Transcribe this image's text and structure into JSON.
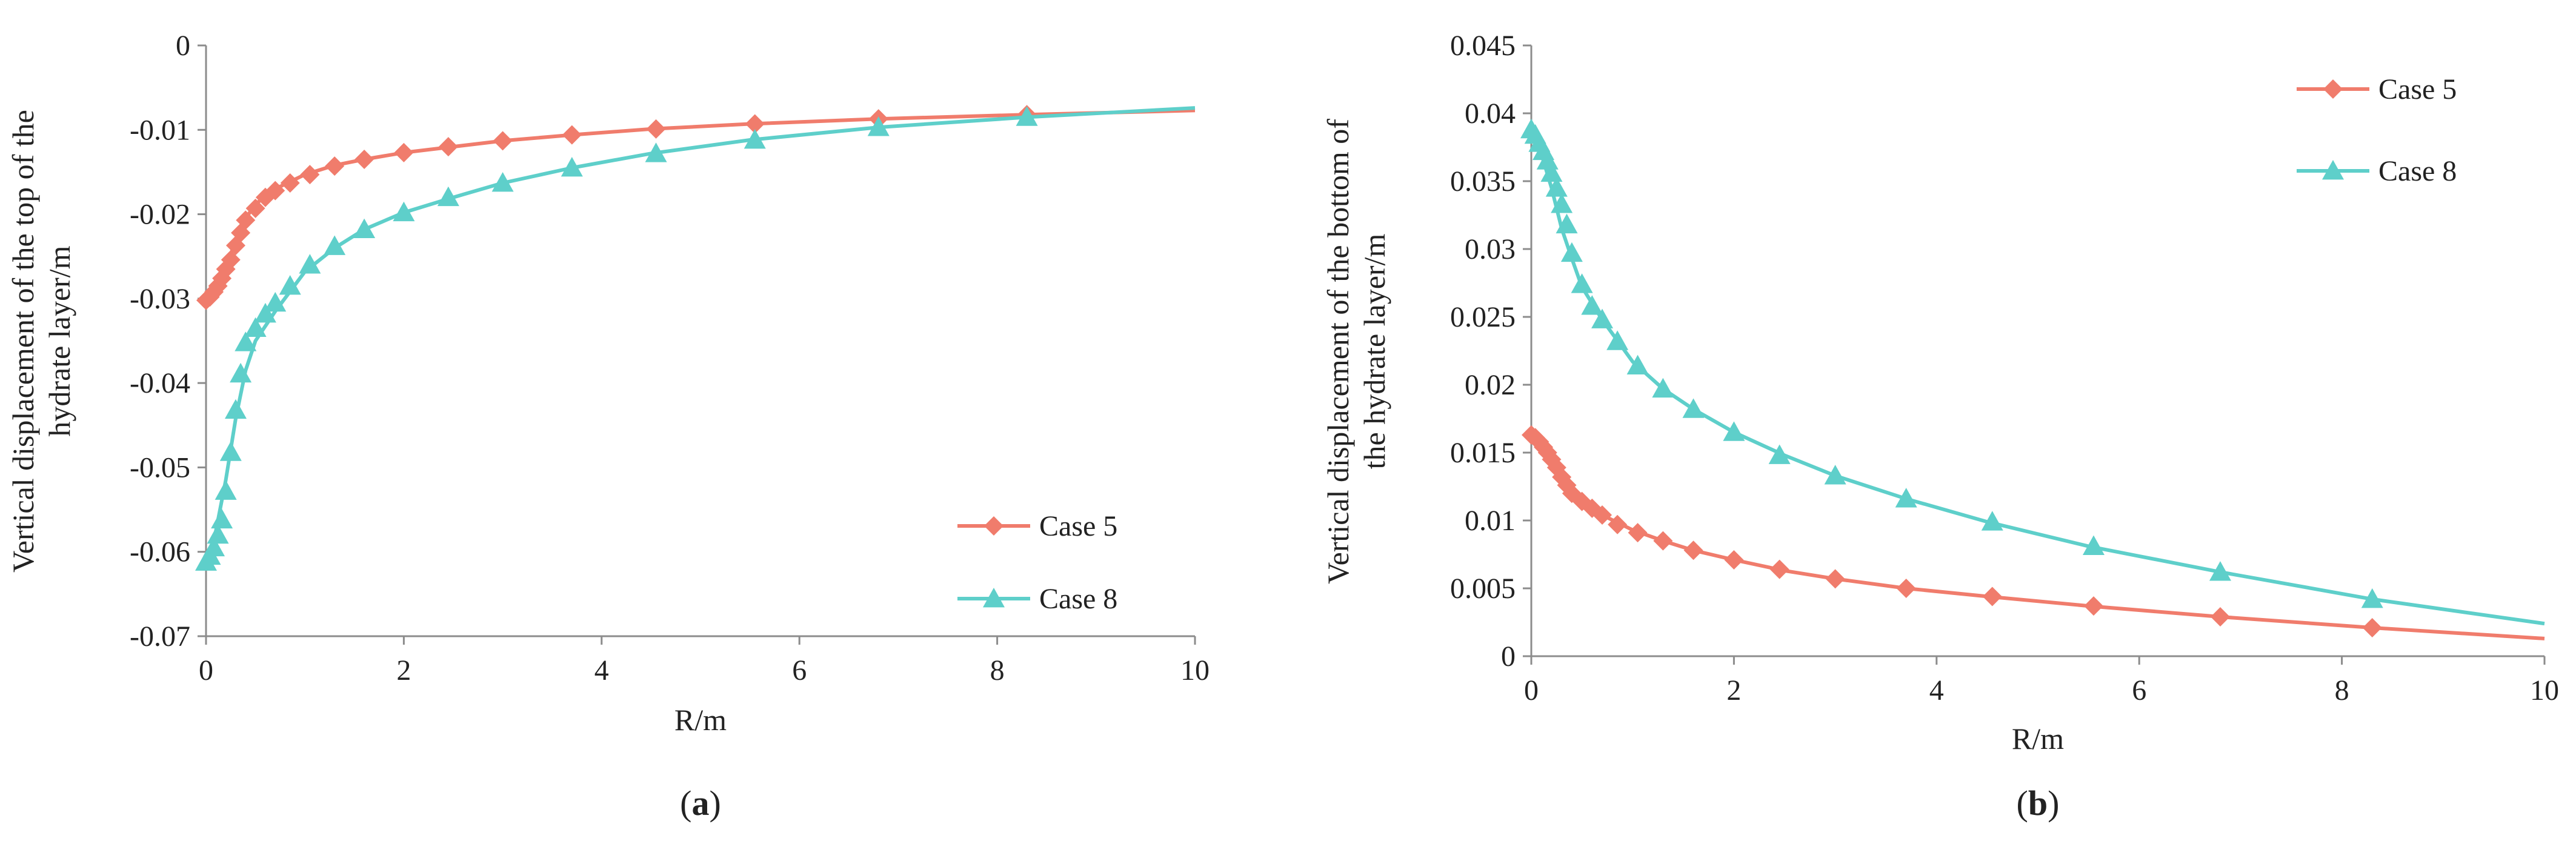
{
  "chart_data": [
    {
      "panel_label": "a",
      "type": "line",
      "xlabel": "R/m",
      "ylabel_lines": [
        "Vertical displacement of the top of the",
        "hydrate layer/m"
      ],
      "xlim": [
        0,
        10
      ],
      "ylim": [
        -0.07,
        0
      ],
      "xticks": [
        0,
        2,
        4,
        6,
        8,
        10
      ],
      "yticks": [
        0,
        -0.01,
        -0.02,
        -0.03,
        -0.04,
        -0.05,
        -0.06,
        -0.07
      ],
      "xtick_labels": [
        "0",
        "2",
        "4",
        "6",
        "8",
        "10"
      ],
      "ytick_labels": [
        "0",
        "-0.01",
        "-0.02",
        "-0.03",
        "-0.04",
        "-0.05",
        "-0.06",
        "-0.07"
      ],
      "legend_position": "bottom-right",
      "series": [
        {
          "name": "Case 5",
          "color": "#f07c6c",
          "marker": "diamond",
          "curve_x": [
            0,
            0.05,
            0.1,
            0.2,
            0.3,
            0.4,
            0.5,
            0.7,
            1.0,
            1.3,
            1.6,
            2.0,
            2.5,
            3.0,
            3.7,
            4.5,
            5.5,
            6.8,
            8.3,
            10
          ],
          "curve_y": [
            -0.0302,
            -0.0295,
            -0.0285,
            -0.0262,
            -0.0232,
            -0.0205,
            -0.0188,
            -0.017,
            -0.0153,
            -0.0142,
            -0.0135,
            -0.0127,
            -0.012,
            -0.0113,
            -0.0106,
            -0.0099,
            -0.0093,
            -0.0087,
            -0.0082,
            -0.0077
          ],
          "markers_x": [
            0,
            0.04,
            0.08,
            0.12,
            0.16,
            0.2,
            0.25,
            0.3,
            0.35,
            0.4,
            0.5,
            0.6,
            0.7,
            0.85,
            1.05,
            1.3,
            1.6,
            2.0,
            2.45,
            3.0,
            3.7,
            4.55,
            5.55,
            6.8,
            8.3
          ],
          "markers_y": [
            -0.0302,
            -0.0298,
            -0.0292,
            -0.0285,
            -0.0276,
            -0.0265,
            -0.0254,
            -0.0237,
            -0.0222,
            -0.0207,
            -0.0193,
            -0.018,
            -0.0172,
            -0.0163,
            -0.0153,
            -0.0143,
            -0.0135,
            -0.0127,
            -0.012,
            -0.0113,
            -0.0106,
            -0.0099,
            -0.0093,
            -0.0087,
            -0.0082
          ]
        },
        {
          "name": "Case 8",
          "color": "#5ecfca",
          "marker": "triangle",
          "curve_x": [
            0,
            0.05,
            0.1,
            0.2,
            0.3,
            0.4,
            0.5,
            0.7,
            1.0,
            1.3,
            1.6,
            2.0,
            2.5,
            3.0,
            3.7,
            4.5,
            5.5,
            6.8,
            8.3,
            10
          ],
          "curve_y": [
            -0.0612,
            -0.06,
            -0.0575,
            -0.0515,
            -0.0442,
            -0.0385,
            -0.035,
            -0.0315,
            -0.0268,
            -0.024,
            -0.0218,
            -0.0198,
            -0.018,
            -0.0163,
            -0.0145,
            -0.0128,
            -0.0112,
            -0.0097,
            -0.0085,
            -0.0074
          ],
          "markers_x": [
            0,
            0.04,
            0.08,
            0.12,
            0.16,
            0.2,
            0.25,
            0.3,
            0.35,
            0.4,
            0.5,
            0.6,
            0.7,
            0.85,
            1.05,
            1.3,
            1.6,
            2.0,
            2.45,
            3.0,
            3.7,
            4.55,
            5.55,
            6.8,
            8.3
          ],
          "markers_y": [
            -0.0612,
            -0.0605,
            -0.0595,
            -0.058,
            -0.0562,
            -0.0528,
            -0.0482,
            -0.0432,
            -0.0389,
            -0.0352,
            -0.0335,
            -0.0318,
            -0.0305,
            -0.0285,
            -0.026,
            -0.0238,
            -0.0218,
            -0.0198,
            -0.018,
            -0.0163,
            -0.0145,
            -0.0128,
            -0.0112,
            -0.0097,
            -0.0085
          ]
        }
      ]
    },
    {
      "panel_label": "b",
      "type": "line",
      "xlabel": "R/m",
      "ylabel_lines": [
        "Vertical displacement of the bottom of",
        "the hydrate layer/m"
      ],
      "xlim": [
        0,
        10
      ],
      "ylim": [
        0,
        0.045
      ],
      "xticks": [
        0,
        2,
        4,
        6,
        8,
        10
      ],
      "yticks": [
        0,
        0.005,
        0.01,
        0.015,
        0.02,
        0.025,
        0.03,
        0.035,
        0.04,
        0.045
      ],
      "xtick_labels": [
        "0",
        "2",
        "4",
        "6",
        "8",
        "10"
      ],
      "ytick_labels": [
        "0",
        "0.005",
        "0.01",
        "0.015",
        "0.02",
        "0.025",
        "0.03",
        "0.035",
        "0.04",
        "0.045"
      ],
      "legend_position": "top-right",
      "series": [
        {
          "name": "Case 5",
          "color": "#f07c6c",
          "marker": "diamond",
          "curve_x": [
            0,
            0.05,
            0.1,
            0.2,
            0.3,
            0.4,
            0.5,
            0.7,
            1.0,
            1.3,
            1.6,
            2.0,
            2.5,
            3.0,
            3.7,
            4.5,
            5.5,
            6.8,
            8.3,
            10
          ],
          "curve_y": [
            0.0163,
            0.016,
            0.0154,
            0.0142,
            0.013,
            0.012,
            0.0113,
            0.0104,
            0.0093,
            0.0085,
            0.0078,
            0.0071,
            0.0063,
            0.0057,
            0.005,
            0.0044,
            0.0037,
            0.0029,
            0.0021,
            0.0013
          ],
          "markers_x": [
            0,
            0.04,
            0.08,
            0.12,
            0.16,
            0.2,
            0.25,
            0.3,
            0.35,
            0.4,
            0.5,
            0.6,
            0.7,
            0.85,
            1.05,
            1.3,
            1.6,
            2.0,
            2.45,
            3.0,
            3.7,
            4.55,
            5.55,
            6.8,
            8.3
          ],
          "markers_y": [
            0.0163,
            0.0161,
            0.0158,
            0.0154,
            0.015,
            0.0145,
            0.0139,
            0.0132,
            0.0126,
            0.012,
            0.0114,
            0.0109,
            0.0104,
            0.0097,
            0.0091,
            0.0085,
            0.0078,
            0.0071,
            0.0064,
            0.0057,
            0.005,
            0.0044,
            0.0037,
            0.0029,
            0.0021
          ]
        },
        {
          "name": "Case 8",
          "color": "#5ecfca",
          "marker": "triangle",
          "curve_x": [
            0,
            0.05,
            0.1,
            0.2,
            0.3,
            0.4,
            0.5,
            0.7,
            1.0,
            1.3,
            1.6,
            2.0,
            2.5,
            3.0,
            3.7,
            4.5,
            5.5,
            6.8,
            8.3,
            10
          ],
          "curve_y": [
            0.0388,
            0.0381,
            0.037,
            0.0345,
            0.0315,
            0.0293,
            0.0272,
            0.0248,
            0.0217,
            0.0197,
            0.0182,
            0.0165,
            0.0148,
            0.0133,
            0.0116,
            0.0099,
            0.0081,
            0.0062,
            0.0042,
            0.0024
          ],
          "markers_x": [
            0,
            0.04,
            0.08,
            0.12,
            0.16,
            0.2,
            0.25,
            0.3,
            0.35,
            0.4,
            0.5,
            0.6,
            0.7,
            0.85,
            1.05,
            1.3,
            1.6,
            2.0,
            2.45,
            3.0,
            3.7,
            4.55,
            5.55,
            6.8,
            8.3
          ],
          "markers_y": [
            0.0388,
            0.0384,
            0.0378,
            0.0372,
            0.0365,
            0.0356,
            0.0345,
            0.0333,
            0.0318,
            0.0297,
            0.0274,
            0.0258,
            0.0248,
            0.0232,
            0.0214,
            0.0197,
            0.0182,
            0.0165,
            0.0148,
            0.0133,
            0.0116,
            0.0099,
            0.0081,
            0.0062,
            0.0042
          ]
        }
      ]
    }
  ]
}
